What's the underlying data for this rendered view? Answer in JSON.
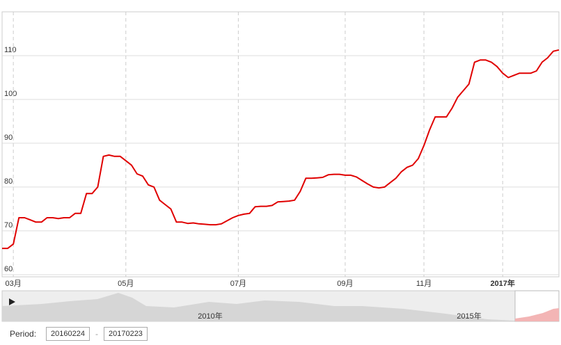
{
  "chart_data": {
    "type": "line",
    "color": "#e00000",
    "categories": [
      null,
      null,
      "03月",
      null,
      null,
      null,
      null,
      null,
      null,
      null,
      null,
      null,
      null,
      null,
      null,
      null,
      null,
      null,
      null,
      null,
      null,
      null,
      "05月",
      null,
      null,
      null,
      null,
      null,
      null,
      null,
      null,
      null,
      null,
      null,
      null,
      null,
      null,
      null,
      null,
      null,
      null,
      null,
      "07月",
      null,
      null,
      null,
      null,
      null,
      null,
      null,
      null,
      null,
      null,
      null,
      null,
      null,
      null,
      null,
      null,
      null,
      null,
      "09月",
      null,
      null,
      null,
      null,
      null,
      null,
      null,
      null,
      null,
      null,
      null,
      null,
      null,
      "11月",
      null,
      null,
      null,
      null,
      null,
      null,
      null,
      null,
      null,
      null,
      null,
      null,
      null,
      "2017年",
      null,
      null,
      null,
      null,
      null,
      null,
      null,
      null,
      null,
      null
    ],
    "values": [
      66,
      66,
      67,
      73,
      73,
      72.5,
      72,
      72,
      73,
      73,
      72.8,
      73,
      73,
      74,
      74,
      78.5,
      78.5,
      80,
      87,
      87.3,
      87,
      87,
      86,
      85,
      83,
      82.5,
      80.5,
      80,
      77,
      76,
      75,
      72,
      72,
      71.7,
      71.8,
      71.6,
      71.5,
      71.4,
      71.4,
      71.6,
      72.3,
      73,
      73.5,
      73.8,
      74,
      75.5,
      75.6,
      75.6,
      75.8,
      76.6,
      76.7,
      76.8,
      77,
      79,
      82,
      82,
      82.1,
      82.2,
      82.8,
      82.9,
      82.9,
      82.7,
      82.7,
      82.3,
      81.5,
      80.7,
      80,
      79.8,
      80,
      81,
      82,
      83.5,
      84.5,
      85,
      86.5,
      89.5,
      93,
      96,
      96,
      96,
      98,
      100.5,
      102,
      103.5,
      108.5,
      109,
      109,
      108.5,
      107.5,
      106,
      105,
      105.5,
      106,
      106,
      106,
      106.5,
      108.5,
      109.5,
      111,
      111.3
    ],
    "ylim": [
      59.5,
      120
    ],
    "yticks": [
      60,
      70,
      80,
      90,
      100,
      110
    ],
    "grid": true
  },
  "navigator": {
    "labels": [
      "2010年",
      "2015年"
    ]
  },
  "period": {
    "label": "Period:",
    "from": "20160224",
    "to": "20170223"
  }
}
